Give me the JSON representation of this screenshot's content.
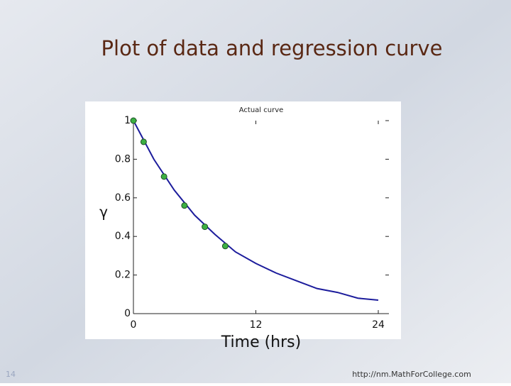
{
  "slide": {
    "title": "Plot of data and regression curve",
    "page_number": "14",
    "footer": "http://nm.MathForCollege.com"
  },
  "chart_data": {
    "type": "line",
    "legend_label": "Actual curve",
    "xlabel": "Time (hrs)",
    "ylabel": "γ",
    "xlim": [
      0,
      24
    ],
    "xticks": [
      0,
      12,
      24
    ],
    "ylim": [
      0,
      1
    ],
    "yticks": [
      0,
      0.2,
      0.4,
      0.6,
      0.8,
      1
    ],
    "series": [
      {
        "name": "Actual curve",
        "type": "line",
        "color": "#1c1c9c",
        "x": [
          0,
          2,
          4,
          6,
          8,
          10,
          12,
          14,
          16,
          18,
          20,
          22,
          24
        ],
        "values": [
          1,
          0.8,
          0.64,
          0.51,
          0.41,
          0.32,
          0.26,
          0.21,
          0.17,
          0.13,
          0.11,
          0.08,
          0.07
        ]
      },
      {
        "type": "scatter",
        "color": "#3cb043",
        "x": [
          0,
          1,
          3,
          5,
          7,
          9
        ],
        "values": [
          1,
          0.89,
          0.71,
          0.56,
          0.45,
          0.35
        ]
      }
    ]
  }
}
